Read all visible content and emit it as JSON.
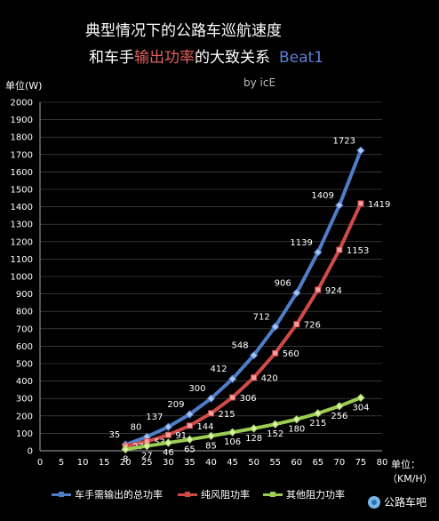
{
  "header": {
    "title_line1": "典型情况下的公路车巡航速度",
    "title_line2_prefix": "和车手",
    "title_line2_highlight": "输出功率",
    "title_line2_suffix": "的大致关系",
    "title_line2_tag": "Beat1",
    "byline": "by icE"
  },
  "brand": {
    "name": "公路车吧"
  },
  "colors": {
    "series1": "#4f7ec9",
    "series2": "#d04a4a",
    "series3": "#9ccc52",
    "background": "#000000",
    "grid": "#555555"
  },
  "chart_data": {
    "type": "line",
    "title": "典型情况下的公路车巡航速度和车手输出功率的大致关系 Beat1",
    "ylabel": "单位(W)",
    "xlabel": "单位：（KM/H）",
    "xunit_line1": "单位：",
    "xunit_line2": "（KM/H）",
    "x": [
      20,
      25,
      30,
      35,
      40,
      45,
      50,
      55,
      60,
      65,
      70,
      75
    ],
    "xlim": [
      0,
      80
    ],
    "ylim": [
      0,
      2000
    ],
    "xticks": [
      0,
      5,
      10,
      15,
      20,
      25,
      30,
      35,
      40,
      45,
      50,
      55,
      60,
      65,
      70,
      75,
      80
    ],
    "yticks": [
      0,
      100,
      200,
      300,
      400,
      500,
      600,
      700,
      800,
      900,
      1000,
      1100,
      1200,
      1300,
      1400,
      1500,
      1600,
      1700,
      1800,
      1900,
      2000
    ],
    "grid": true,
    "legend_position": "bottom",
    "series": [
      {
        "name": "车手需输出的总功率",
        "values": [
          35,
          80,
          137,
          209,
          300,
          412,
          548,
          712,
          906,
          1139,
          1409,
          1723
        ]
      },
      {
        "name": "纯风阻功率",
        "values": [
          27,
          53,
          91,
          144,
          215,
          306,
          420,
          560,
          726,
          924,
          1153,
          1419
        ]
      },
      {
        "name": "其他阻力功率",
        "values": [
          8,
          27,
          46,
          65,
          85,
          106,
          128,
          152,
          180,
          215,
          256,
          304
        ]
      }
    ]
  }
}
